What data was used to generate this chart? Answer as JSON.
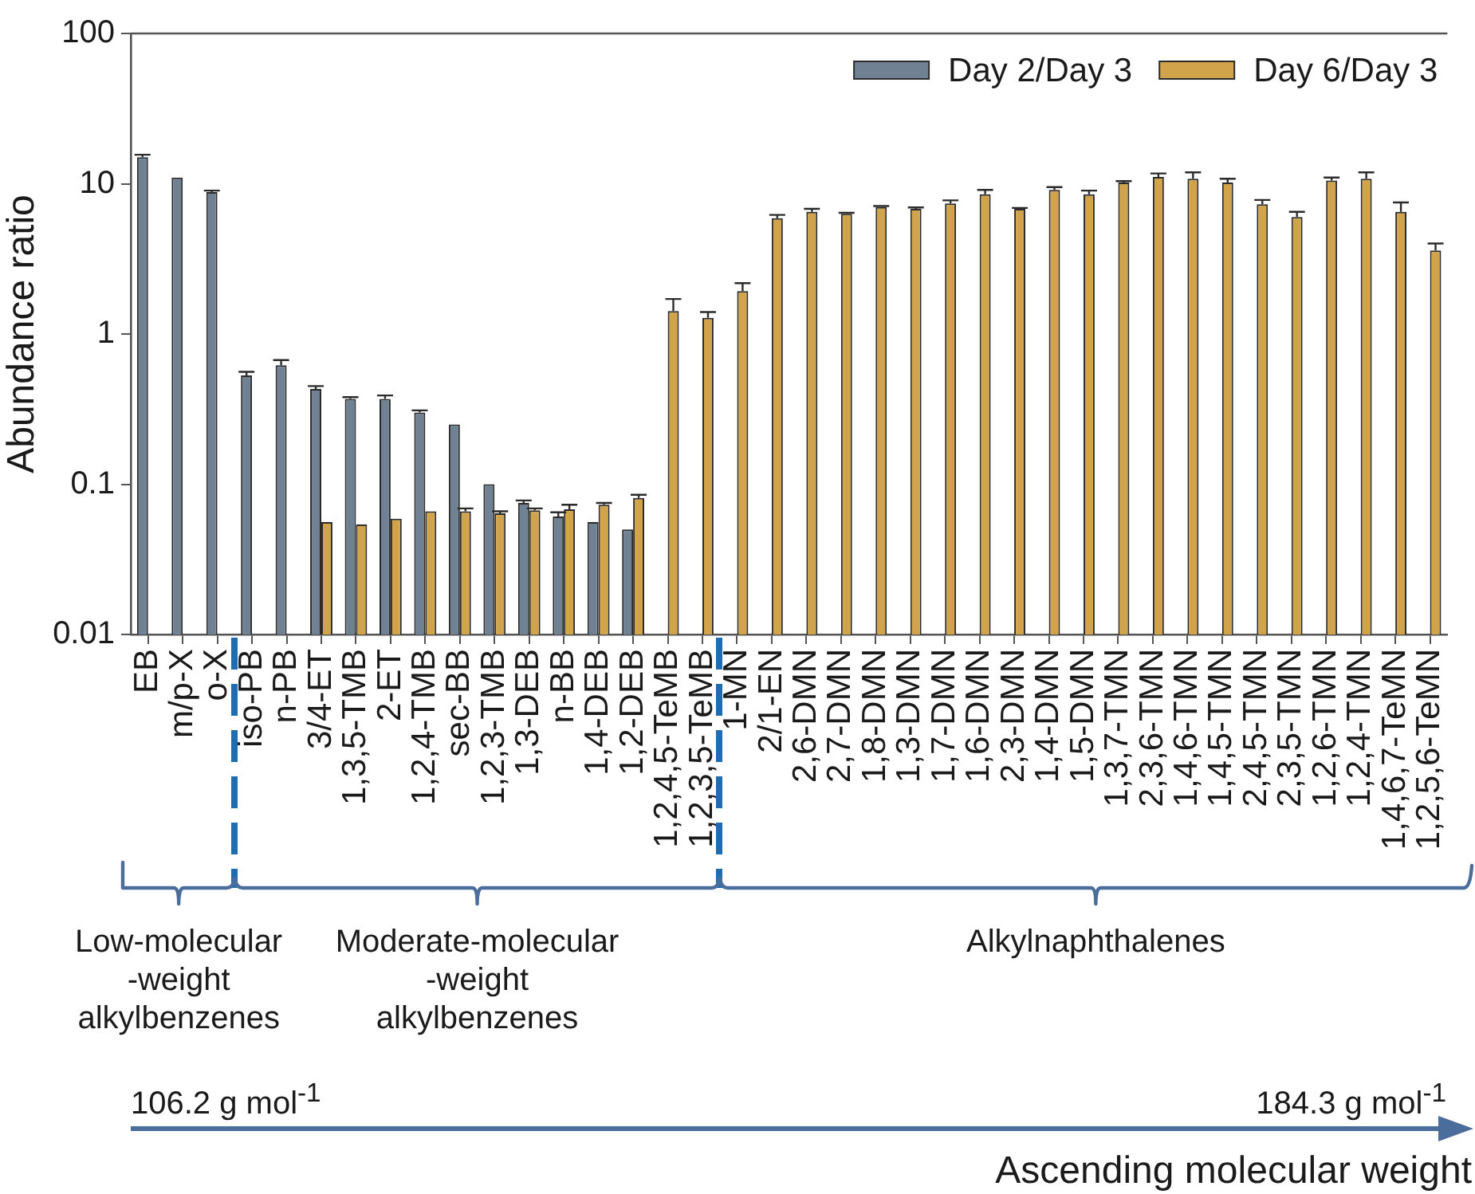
{
  "chart_data": {
    "type": "bar",
    "ylabel": "Abundance ratio",
    "log": true,
    "legend": "top right",
    "categories": [
      "EB",
      "m/p-X",
      "o-X",
      "iso-PB",
      "n-PB",
      "3/4-ET",
      "1,3,5-TMB",
      "2-ET",
      "1,2,4-TMB",
      "sec-BB",
      "1,2,3-TMB",
      "1,3-DEB",
      "n-BB",
      "1,4-DEB",
      "1,2-DEB",
      "1,2,4,5-TeMB",
      "1,2,3,5-TeMB",
      "1-MN",
      "2/1-EN",
      "2,6-DMN",
      "2,7-DMN",
      "1,8-DMN",
      "1,3-DMN",
      "1,7-DMN",
      "1,6-DMN",
      "2,3-DMN",
      "1,4-DMN",
      "1,5-DMN",
      "1,3,7-TMN",
      "2,3,6-TMN",
      "1,4,6-TMN",
      "1,4,5-TMN",
      "2,4,5-TMN",
      "2,3,5-TMN",
      "1,2,6-TMN",
      "1,2,4-TMN",
      "1,4,6,7-TeMN",
      "1,2,5,6-TeMN"
    ],
    "series": [
      {
        "name": "Day 2/Day 3",
        "color": "#6f8193",
        "values": [
          15,
          11,
          8.8,
          0.53,
          0.62,
          0.43,
          0.37,
          0.37,
          0.3,
          0.25,
          0.1,
          0.075,
          0.061,
          0.056,
          0.05,
          null,
          null,
          null,
          null,
          null,
          null,
          null,
          null,
          null,
          null,
          null,
          null,
          null,
          null,
          null,
          null,
          null,
          null,
          null,
          null,
          null,
          null,
          null
        ],
        "errors": [
          0.6,
          null,
          0.2,
          0.03,
          0.05,
          0.02,
          0.01,
          0.02,
          0.01,
          null,
          null,
          0.003,
          0.004,
          null,
          null,
          null,
          null,
          null,
          null,
          null,
          null,
          null,
          null,
          null,
          null,
          null,
          null,
          null,
          null,
          null,
          null,
          null,
          null,
          null,
          null,
          null,
          null,
          null
        ]
      },
      {
        "name": "Day 6/Day 3",
        "color": "#d1a44b",
        "values": [
          null,
          null,
          null,
          null,
          null,
          0.056,
          0.054,
          0.059,
          0.066,
          0.066,
          0.064,
          0.067,
          0.068,
          0.073,
          0.081,
          1.42,
          1.28,
          1.93,
          5.9,
          6.5,
          6.3,
          7.0,
          6.8,
          7.4,
          8.5,
          6.8,
          9.1,
          8.5,
          10.2,
          11.1,
          10.8,
          10.2,
          7.3,
          6.0,
          10.5,
          10.8,
          6.5,
          3.6
        ],
        "errors": [
          null,
          null,
          null,
          null,
          null,
          null,
          null,
          null,
          null,
          0.003,
          0.002,
          0.002,
          0.005,
          0.002,
          0.004,
          0.29,
          0.12,
          0.25,
          0.3,
          0.3,
          0.1,
          0.1,
          0.15,
          0.35,
          0.6,
          0.1,
          0.4,
          0.5,
          0.2,
          0.6,
          1.1,
          0.6,
          0.5,
          0.5,
          0.5,
          1.1,
          1.0,
          0.4
        ]
      }
    ],
    "ylim": [
      0.01,
      100
    ],
    "yticks": [
      0.01,
      0.1,
      1,
      10,
      100
    ],
    "annotations": [
      "Low-molecular -weight alkylbenzenes",
      "Moderate-molecular -weight alkylbenzenes",
      "Alkylnaphthalenes",
      "106.2 g mol$^{-1}$",
      "184.3 g mol$^{-1}$",
      "Ascending molecular weight"
    ]
  }
}
